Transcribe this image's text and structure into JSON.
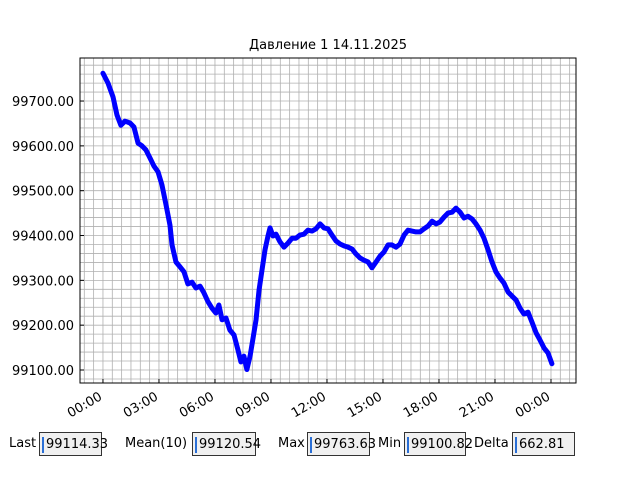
{
  "chart_data": {
    "type": "line",
    "title": "Давление 1 14.11.2025",
    "x": [
      0,
      0.27,
      0.54,
      0.75,
      0.96,
      1.18,
      1.45,
      1.66,
      1.88,
      2.09,
      2.3,
      2.52,
      2.73,
      2.95,
      3.16,
      3.38,
      3.59,
      3.7,
      3.91,
      4.13,
      4.34,
      4.55,
      4.77,
      4.98,
      5.2,
      5.41,
      5.63,
      5.84,
      6.05,
      6.21,
      6.38,
      6.59,
      6.8,
      7.02,
      7.23,
      7.39,
      7.55,
      7.71,
      7.88,
      8.04,
      8.2,
      8.36,
      8.52,
      8.68,
      8.84,
      8.95,
      9.11,
      9.27,
      9.48,
      9.7,
      9.91,
      10.13,
      10.34,
      10.55,
      10.77,
      10.98,
      11.2,
      11.41,
      11.63,
      11.84,
      12.05,
      12.27,
      12.48,
      12.7,
      12.91,
      13.13,
      13.34,
      13.55,
      13.77,
      13.98,
      14.2,
      14.41,
      14.63,
      14.84,
      15.05,
      15.27,
      15.48,
      15.7,
      15.91,
      16.13,
      16.34,
      16.55,
      16.77,
      16.98,
      17.2,
      17.41,
      17.63,
      17.84,
      18.05,
      18.27,
      18.48,
      18.7,
      18.91,
      19.13,
      19.34,
      19.55,
      19.77,
      19.98,
      20.2,
      20.41,
      20.63,
      20.84,
      21.05,
      21.27,
      21.48,
      21.7,
      21.91,
      22.13,
      22.34,
      22.55,
      22.77,
      22.98,
      23.2,
      23.41,
      23.63,
      23.84,
      24.05
    ],
    "series": [
      {
        "color": "#0000ff",
        "values": [
          99762,
          99740,
          99709,
          99669,
          99646,
          99655,
          99651,
          99642,
          99606,
          99600,
          99591,
          99573,
          99555,
          99542,
          99513,
          99468,
          99423,
          99379,
          99341,
          99330,
          99319,
          99292,
          99296,
          99283,
          99287,
          99272,
          99252,
          99238,
          99227,
          99245,
          99212,
          99216,
          99189,
          99178,
          99145,
          99118,
          99131,
          99101,
          99131,
          99171,
          99212,
          99278,
          99323,
          99368,
          99399,
          99417,
          99399,
          99403,
          99386,
          99374,
          99383,
          99394,
          99394,
          99401,
          99403,
          99412,
          99410,
          99415,
          99426,
          99417,
          99415,
          99401,
          99388,
          99381,
          99377,
          99374,
          99370,
          99359,
          99350,
          99345,
          99341,
          99328,
          99341,
          99354,
          99363,
          99379,
          99379,
          99374,
          99381,
          99401,
          99412,
          99410,
          99408,
          99408,
          99415,
          99421,
          99432,
          99426,
          99430,
          99441,
          99450,
          99452,
          99461,
          99452,
          99439,
          99443,
          99437,
          99426,
          99412,
          99394,
          99368,
          99341,
          99319,
          99305,
          99294,
          99274,
          99265,
          99256,
          99238,
          99225,
          99229,
          99207,
          99183,
          99167,
          99149,
          99138,
          99114
        ]
      }
    ],
    "xlim": [
      -1.23,
      25.34
    ],
    "xticks": [
      {
        "value": 0,
        "label": "00:00"
      },
      {
        "value": 3,
        "label": "03:00"
      },
      {
        "value": 6,
        "label": "06:00"
      },
      {
        "value": 9,
        "label": "09:00"
      },
      {
        "value": 12,
        "label": "12:00"
      },
      {
        "value": 15,
        "label": "15:00"
      },
      {
        "value": 18,
        "label": "18:00"
      },
      {
        "value": 21,
        "label": "21:00"
      },
      {
        "value": 24,
        "label": "00:00"
      }
    ],
    "ylim": [
      99071,
      99796
    ],
    "yticks": [
      {
        "value": 99100,
        "label": "99100.00"
      },
      {
        "value": 99200,
        "label": "99200.00"
      },
      {
        "value": 99300,
        "label": "99300.00"
      },
      {
        "value": 99400,
        "label": "99400.00"
      },
      {
        "value": 99500,
        "label": "99500.00"
      },
      {
        "value": 99600,
        "label": "99600.00"
      },
      {
        "value": 99700,
        "label": "99700.00"
      }
    ],
    "grid": true
  },
  "stats": [
    {
      "label": "Last",
      "value": 99114.33
    },
    {
      "label": "Mean(10)",
      "value": 99120.54
    },
    {
      "label": "Max",
      "value": 99763.63
    },
    {
      "label": "Min",
      "value": 99100.82
    },
    {
      "label": "Delta",
      "value": 662.81
    }
  ]
}
